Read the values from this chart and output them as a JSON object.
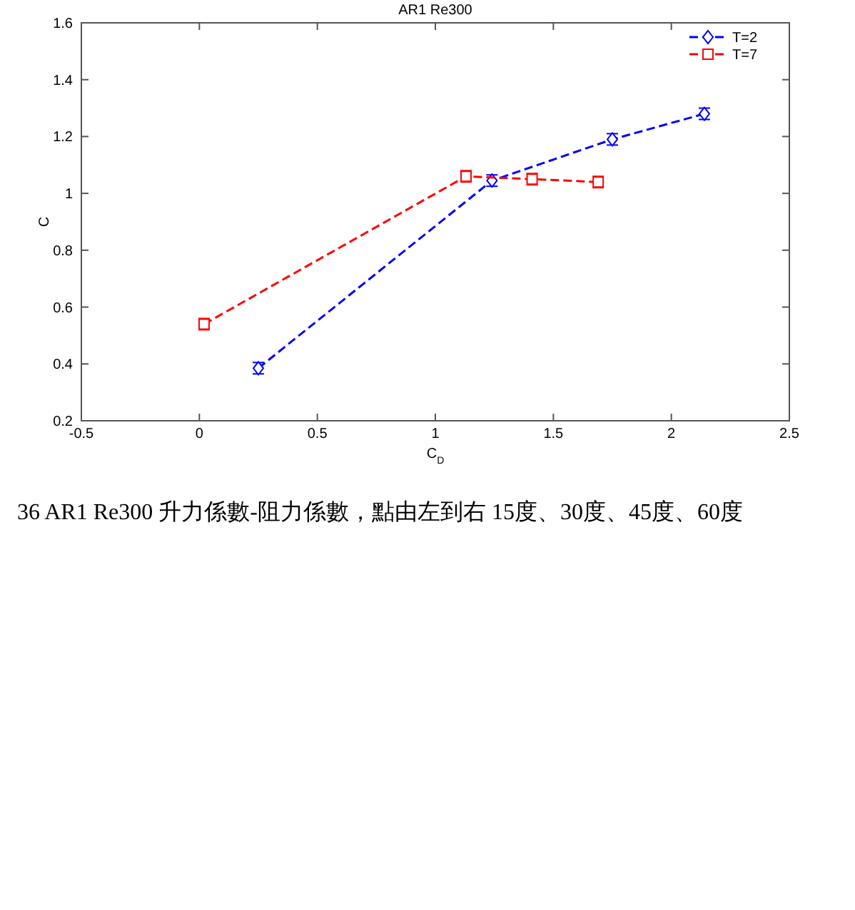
{
  "chart_data": {
    "type": "line",
    "title": "AR1 Re300",
    "xlabel": "C$_{D}$",
    "ylabel": "C",
    "xlim": [
      -0.5,
      2.5
    ],
    "xticks": [
      -0.5,
      0,
      0.5,
      1,
      1.5,
      2,
      2.5
    ],
    "ylim": [
      0.2,
      1.6
    ],
    "yticks": [
      0.2,
      0.4,
      0.6,
      0.8,
      1,
      1.2,
      1.4,
      1.6
    ],
    "grid": false,
    "legend": "top right",
    "line_style": "dashed",
    "series": [
      {
        "name": "T=2",
        "color": "#0000ff",
        "marker": "diamond",
        "x": [
          0.25,
          1.24,
          1.75,
          2.14
        ],
        "values": [
          0.385,
          1.045,
          1.19,
          1.28
        ],
        "errors": [
          0.02,
          0.02,
          0.02,
          0.02
        ]
      },
      {
        "name": "T=7",
        "color": "#ff0000",
        "marker": "square",
        "x": [
          0.02,
          1.13,
          1.41,
          1.69
        ],
        "values": [
          0.54,
          1.06,
          1.05,
          1.04
        ],
        "errors": [
          0.02,
          0.02,
          0.02,
          0.02
        ]
      }
    ],
    "annotations": [
      "36 AR1 Re300 升力係數-阻力係數，點由左到右 15度、30度、45度、60度"
    ]
  }
}
